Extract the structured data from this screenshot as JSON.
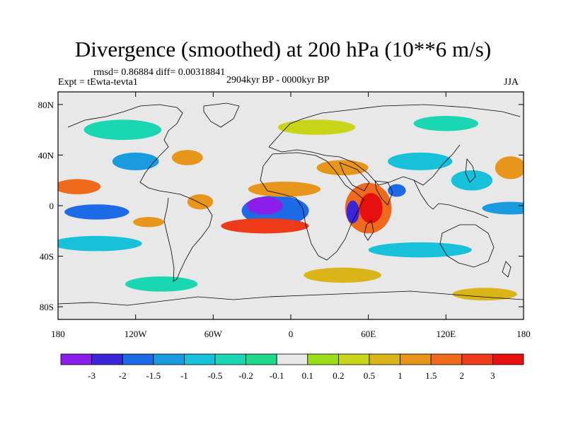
{
  "title": "Divergence (smoothed) at 200 hPa (10**6 m/s)",
  "stats": "rmsd= 0.86884 diff= 0.00318841",
  "experiment": "Expt = tEwta-tevta1",
  "period": "2904kyr BP - 0000kyr BP",
  "season": "JJA",
  "axes": {
    "y_ticks": [
      {
        "label": "80N",
        "lat": 80
      },
      {
        "label": "40N",
        "lat": 40
      },
      {
        "label": "0",
        "lat": 0
      },
      {
        "label": "40S",
        "lat": -40
      },
      {
        "label": "80S",
        "lat": -80
      }
    ],
    "x_ticks": [
      {
        "label": "180",
        "lon": -180
      },
      {
        "label": "120W",
        "lon": -120
      },
      {
        "label": "60W",
        "lon": -60
      },
      {
        "label": "0",
        "lon": 0
      },
      {
        "label": "60E",
        "lon": 60
      },
      {
        "label": "120E",
        "lon": 120
      },
      {
        "label": "180",
        "lon": 180
      }
    ],
    "lat_range": [
      -90,
      90
    ],
    "lon_range": [
      -180,
      180
    ]
  },
  "colorbar": {
    "colors": [
      "#8a1eeb",
      "#3a25d9",
      "#1e6ae6",
      "#1a9adf",
      "#17c1d9",
      "#1ad6b3",
      "#1fd98a",
      "#e8e8e8",
      "#9ddc1a",
      "#c9d31a",
      "#d9b51a",
      "#e8951c",
      "#ef6a1c",
      "#ed3a1a",
      "#e61010"
    ],
    "labels": [
      "-3",
      "-2",
      "-1.5",
      "-1",
      "-0.5",
      "-0.2",
      "-0.1",
      "0.1",
      "0.2",
      "0.5",
      "1",
      "1.5",
      "2",
      "3"
    ]
  },
  "chart_data": {
    "type": "heatmap",
    "variable": "Divergence (smoothed) at 200 hPa",
    "units": "10**6 m/s",
    "season": "JJA",
    "comparison": "2904kyr BP - 0000kyr BP",
    "rmsd": 0.86884,
    "diff": 0.00318841,
    "features": [
      {
        "lon": -20,
        "lat": 0,
        "rx": 14,
        "ry": 7,
        "value": -3.2
      },
      {
        "lon": -12,
        "lat": -4,
        "rx": 26,
        "ry": 12,
        "value": -1.8
      },
      {
        "lon": 62,
        "lat": -2,
        "rx": 9,
        "ry": 12,
        "value": 3.2
      },
      {
        "lon": 60,
        "lat": -2,
        "rx": 18,
        "ry": 20,
        "value": 1.6
      },
      {
        "lon": 48,
        "lat": -5,
        "rx": 5,
        "ry": 9,
        "value": -2.2
      },
      {
        "lon": 82,
        "lat": 12,
        "rx": 7,
        "ry": 5,
        "value": -1.8
      },
      {
        "lon": -20,
        "lat": -16,
        "rx": 34,
        "ry": 6,
        "value": 2.2
      },
      {
        "lon": -5,
        "lat": 13,
        "rx": 28,
        "ry": 6,
        "value": 1.4
      },
      {
        "lon": -150,
        "lat": -5,
        "rx": 25,
        "ry": 6,
        "value": -1.8
      },
      {
        "lon": -165,
        "lat": 15,
        "rx": 18,
        "ry": 6,
        "value": 1.5
      },
      {
        "lon": -110,
        "lat": -13,
        "rx": 12,
        "ry": 4,
        "value": 1.4
      },
      {
        "lon": -70,
        "lat": 3,
        "rx": 10,
        "ry": 6,
        "value": 1.0
      },
      {
        "lon": 170,
        "lat": -2,
        "rx": 22,
        "ry": 5,
        "value": -1.5
      },
      {
        "lon": 140,
        "lat": 20,
        "rx": 16,
        "ry": 8,
        "value": -1.0
      },
      {
        "lon": 170,
        "lat": 30,
        "rx": 12,
        "ry": 9,
        "value": 1.3
      },
      {
        "lon": -80,
        "lat": 38,
        "rx": 12,
        "ry": 6,
        "value": 1.4
      },
      {
        "lon": -120,
        "lat": 35,
        "rx": 18,
        "ry": 7,
        "value": -1.1
      },
      {
        "lon": 40,
        "lat": 30,
        "rx": 20,
        "ry": 6,
        "value": 1.0
      },
      {
        "lon": 100,
        "lat": 35,
        "rx": 25,
        "ry": 7,
        "value": -0.8
      },
      {
        "lon": -150,
        "lat": -30,
        "rx": 35,
        "ry": 6,
        "value": -0.9
      },
      {
        "lon": 100,
        "lat": -35,
        "rx": 40,
        "ry": 6,
        "value": -0.6
      },
      {
        "lon": 40,
        "lat": -55,
        "rx": 30,
        "ry": 6,
        "value": 0.8
      },
      {
        "lon": -100,
        "lat": -62,
        "rx": 28,
        "ry": 6,
        "value": -0.5
      },
      {
        "lon": 150,
        "lat": -70,
        "rx": 25,
        "ry": 5,
        "value": 0.6
      },
      {
        "lon": -130,
        "lat": 60,
        "rx": 30,
        "ry": 8,
        "value": -0.5
      },
      {
        "lon": 20,
        "lat": 62,
        "rx": 30,
        "ry": 6,
        "value": 0.4
      },
      {
        "lon": 120,
        "lat": 65,
        "rx": 25,
        "ry": 6,
        "value": -0.4
      }
    ]
  }
}
